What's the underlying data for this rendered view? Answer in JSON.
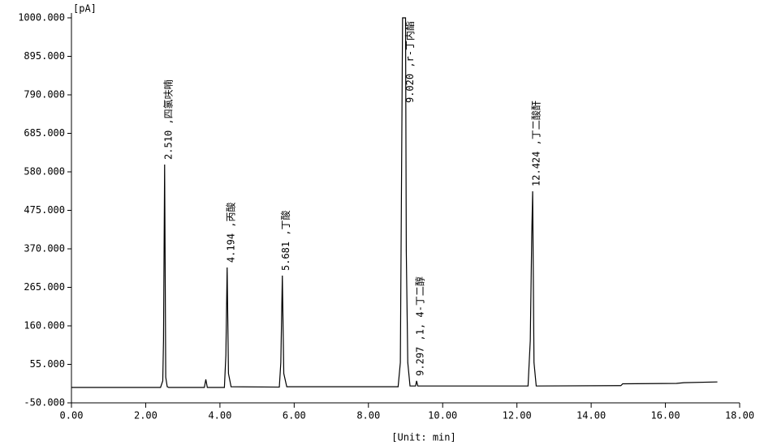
{
  "chart_data": {
    "type": "line",
    "y_label": "[pA]",
    "x_label": "[Unit: min]",
    "ylim": [
      -50,
      1000
    ],
    "yticks": [
      {
        "value": -50,
        "label": "-50.000"
      },
      {
        "value": 55,
        "label": "55.000"
      },
      {
        "value": 160,
        "label": "160.000"
      },
      {
        "value": 265,
        "label": "265.000"
      },
      {
        "value": 370,
        "label": "370.000"
      },
      {
        "value": 475,
        "label": "475.000"
      },
      {
        "value": 580,
        "label": "580.000"
      },
      {
        "value": 685,
        "label": "685.000"
      },
      {
        "value": 790,
        "label": "790.000"
      },
      {
        "value": 895,
        "label": "895.000"
      },
      {
        "value": 1000,
        "label": "1000.000"
      }
    ],
    "xlim": [
      0,
      18
    ],
    "xticks": [
      {
        "value": 0,
        "label": "0.00"
      },
      {
        "value": 2,
        "label": "2.00"
      },
      {
        "value": 4,
        "label": "4.00"
      },
      {
        "value": 6,
        "label": "6.00"
      },
      {
        "value": 8,
        "label": "8.00"
      },
      {
        "value": 10,
        "label": "10.00"
      },
      {
        "value": 12,
        "label": "12.00"
      },
      {
        "value": 14,
        "label": "14.00"
      },
      {
        "value": 16,
        "label": "16.00"
      },
      {
        "value": 18,
        "label": "18.00"
      }
    ],
    "color": "#000000",
    "x": [
      0,
      2.4,
      2.46,
      2.48,
      2.51,
      2.54,
      2.58,
      2.62,
      3.58,
      3.62,
      3.66,
      4.12,
      4.16,
      4.194,
      4.23,
      4.3,
      5.6,
      5.64,
      5.681,
      5.72,
      5.8,
      8.8,
      8.86,
      8.92,
      9.0,
      9.02,
      9.06,
      9.12,
      9.27,
      9.297,
      9.33,
      12.3,
      12.36,
      12.4,
      12.424,
      12.46,
      12.52,
      14.8,
      14.85,
      16.3,
      16.5,
      17.4
    ],
    "values": [
      -8,
      -8,
      10,
      120,
      600,
      20,
      -6,
      -8,
      -8,
      14,
      -8,
      -8,
      80,
      319,
      30,
      -6,
      -7,
      60,
      297,
      30,
      -6,
      -6,
      60,
      1000,
      1000,
      363,
      60,
      -4,
      -4,
      10,
      -4,
      -4,
      120,
      410,
      527,
      60,
      -4,
      -3,
      2,
      3,
      5,
      7
    ],
    "annotations": [
      {
        "text": "2.510 ,四氯呋喃",
        "x": 2.51,
        "y": 600
      },
      {
        "text": "4.194 ,丙酸",
        "x": 4.194,
        "y": 319
      },
      {
        "text": "5.681 ,丁酸",
        "x": 5.681,
        "y": 297
      },
      {
        "text": "9.020 ,r-丁内酯",
        "x": 9.02,
        "y": 1000
      },
      {
        "text": "9.297 ,1, 4-丁二醇",
        "x": 9.297,
        "y": 10
      },
      {
        "text": "12.424 ,丁二酸酐",
        "x": 12.424,
        "y": 527
      }
    ]
  }
}
